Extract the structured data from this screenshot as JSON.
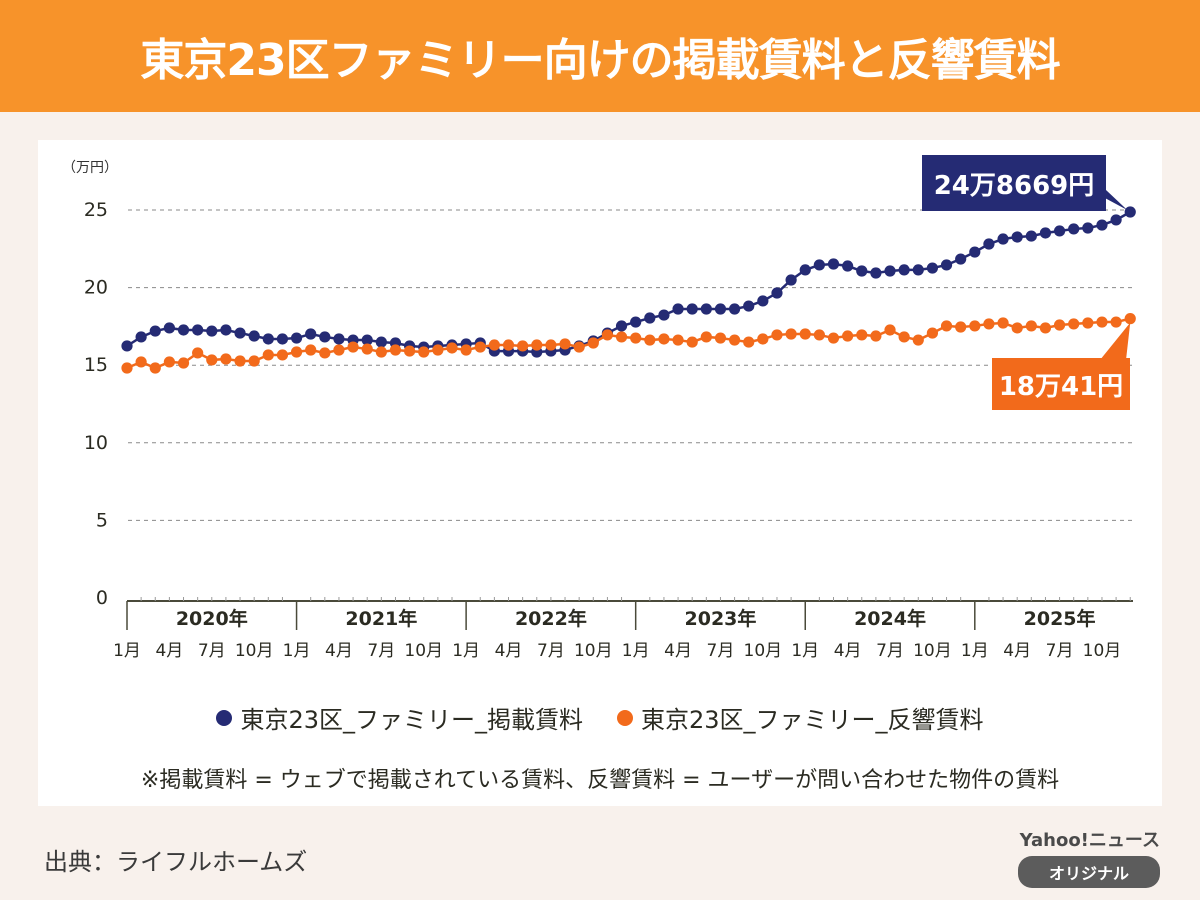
{
  "header": {
    "title": "東京23区ファミリー向けの掲載賃料と反響賃料"
  },
  "chart_data": {
    "type": "line",
    "title": "東京23区ファミリー向けの掲載賃料と反響賃料",
    "ylabel": "（万円）",
    "xlabel": "",
    "ylim": [
      0,
      25
    ],
    "yticks": [
      "0",
      "5",
      "10",
      "15",
      "20",
      "25"
    ],
    "ytick_values": [
      0,
      5,
      10,
      15,
      20,
      25
    ],
    "grid": true,
    "legend_position": "bottom",
    "years": [
      "2020年",
      "2021年",
      "2022年",
      "2023年",
      "2024年",
      "2025年"
    ],
    "month_labels": [
      "1月",
      "4月",
      "7月",
      "10月"
    ],
    "x_start": "2020-01",
    "x_end": "2025-12",
    "series": [
      {
        "name": "東京23区_ファミリー_掲載賃料",
        "color": "#252b74",
        "values": [
          16.24,
          16.82,
          17.2,
          17.4,
          17.27,
          17.27,
          17.2,
          17.27,
          17.07,
          16.88,
          16.69,
          16.69,
          16.75,
          17.01,
          16.82,
          16.69,
          16.62,
          16.62,
          16.49,
          16.43,
          16.24,
          16.17,
          16.24,
          16.3,
          16.37,
          16.43,
          15.91,
          15.91,
          15.91,
          15.85,
          15.91,
          15.98,
          16.24,
          16.56,
          17.07,
          17.53,
          17.78,
          18.04,
          18.23,
          18.62,
          18.62,
          18.62,
          18.62,
          18.62,
          18.81,
          19.14,
          19.65,
          20.49,
          21.14,
          21.46,
          21.52,
          21.39,
          21.07,
          20.94,
          21.07,
          21.14,
          21.14,
          21.26,
          21.46,
          21.84,
          22.29,
          22.81,
          23.13,
          23.26,
          23.32,
          23.52,
          23.65,
          23.78,
          23.84,
          24.03,
          24.36,
          24.87
        ]
      },
      {
        "name": "東京23区_ファミリー_反響賃料",
        "color": "#f26a1b",
        "values": [
          14.82,
          15.21,
          14.82,
          15.21,
          15.14,
          15.79,
          15.34,
          15.4,
          15.27,
          15.27,
          15.66,
          15.66,
          15.85,
          15.98,
          15.79,
          15.98,
          16.17,
          16.04,
          15.85,
          15.98,
          15.91,
          15.85,
          15.98,
          16.11,
          15.98,
          16.17,
          16.3,
          16.3,
          16.24,
          16.3,
          16.3,
          16.37,
          16.17,
          16.43,
          16.95,
          16.82,
          16.75,
          16.62,
          16.69,
          16.62,
          16.49,
          16.82,
          16.75,
          16.62,
          16.49,
          16.69,
          16.95,
          17.01,
          17.01,
          16.95,
          16.75,
          16.88,
          16.95,
          16.88,
          17.27,
          16.82,
          16.62,
          17.07,
          17.53,
          17.46,
          17.53,
          17.66,
          17.72,
          17.4,
          17.53,
          17.4,
          17.59,
          17.66,
          17.72,
          17.78,
          17.78,
          18.0
        ]
      }
    ],
    "annotations": [
      {
        "series": 0,
        "text": "24万8669円",
        "color": "#252b74"
      },
      {
        "series": 1,
        "text": "18万41円",
        "color": "#f26a1b"
      }
    ]
  },
  "legend": [
    {
      "label": "東京23区_ファミリー_掲載賃料",
      "color": "#252b74"
    },
    {
      "label": "東京23区_ファミリー_反響賃料",
      "color": "#f26a1b"
    }
  ],
  "note": "※掲載賃料 = ウェブで掲載されている賃料、反響賃料 = ユーザーが問い合わせた物件の賃料",
  "source": "出典：ライフルホームズ",
  "brand": {
    "name": "Yahoo!ニュース",
    "badge": "オリジナル"
  },
  "colors": {
    "header": "#f7932a",
    "background": "#f8f1ec",
    "blue": "#252b74",
    "orange": "#f26a1b"
  }
}
